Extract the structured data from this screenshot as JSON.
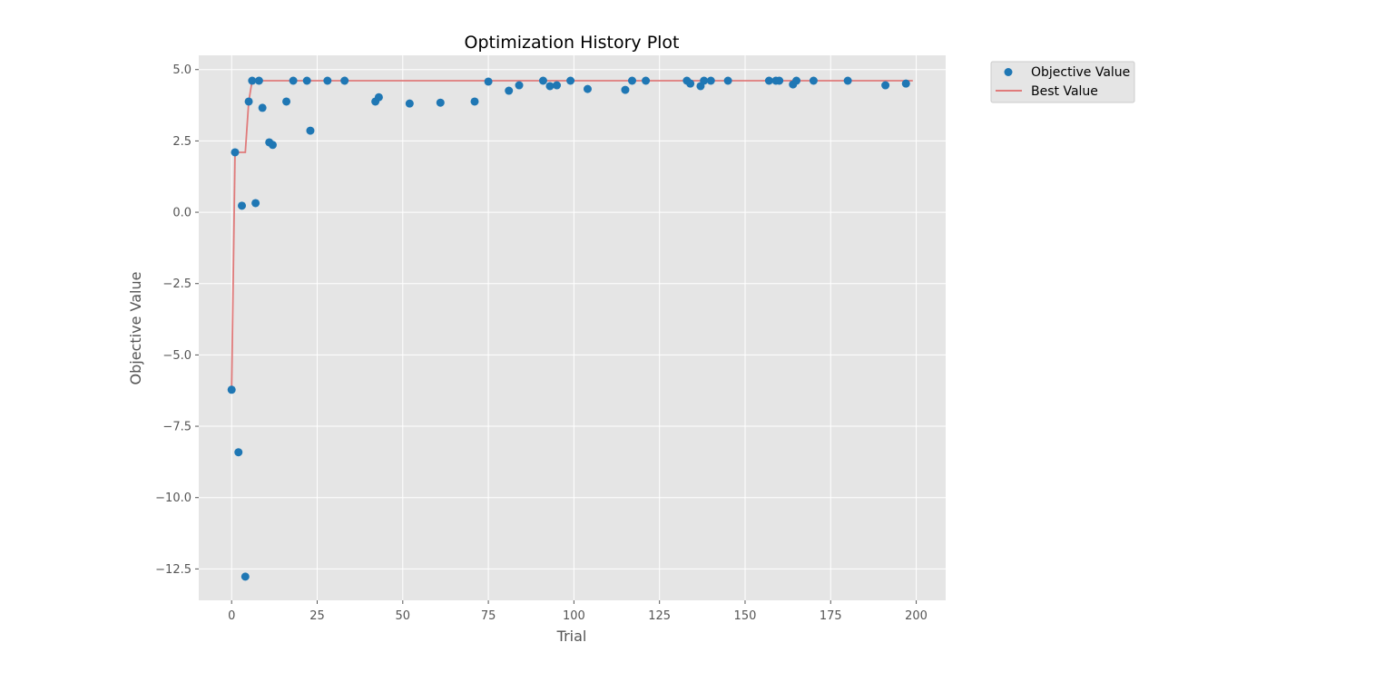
{
  "chart_data": {
    "type": "scatter",
    "title": "Optimization History Plot",
    "xlabel": "Trial",
    "ylabel": "Objective Value",
    "xlim": [
      -9.6,
      208.6
    ],
    "ylim": [
      -13.6,
      5.5
    ],
    "xticks": [
      0,
      25,
      50,
      75,
      100,
      125,
      150,
      175,
      200
    ],
    "yticks": [
      5.0,
      2.5,
      0.0,
      -2.5,
      -5.0,
      -7.5,
      -10.0,
      -12.5
    ],
    "ytick_labels": [
      "5.0",
      "2.5",
      "0.0",
      "−2.5",
      "−5.0",
      "−7.5",
      "−10.0",
      "−12.5"
    ],
    "grid": true,
    "legend_position": "outside-top-right",
    "series": [
      {
        "name": "Objective Value",
        "kind": "scatter",
        "color": "#1f77b4",
        "points": [
          [
            0,
            -6.22
          ],
          [
            1,
            2.1
          ],
          [
            2,
            -8.41
          ],
          [
            3,
            0.23
          ],
          [
            4,
            -12.77
          ],
          [
            5,
            3.88
          ],
          [
            6,
            4.61
          ],
          [
            7,
            0.32
          ],
          [
            8,
            4.61
          ],
          [
            9,
            3.66
          ],
          [
            11,
            2.45
          ],
          [
            12,
            2.36
          ],
          [
            16,
            3.88
          ],
          [
            18,
            4.61
          ],
          [
            22,
            4.61
          ],
          [
            23,
            2.86
          ],
          [
            28,
            4.61
          ],
          [
            33,
            4.61
          ],
          [
            42,
            3.88
          ],
          [
            43,
            4.03
          ],
          [
            52,
            3.81
          ],
          [
            61,
            3.84
          ],
          [
            71,
            3.88
          ],
          [
            75,
            4.58
          ],
          [
            81,
            4.26
          ],
          [
            84,
            4.45
          ],
          [
            91,
            4.61
          ],
          [
            93,
            4.42
          ],
          [
            95,
            4.45
          ],
          [
            99,
            4.61
          ],
          [
            104,
            4.32
          ],
          [
            115,
            4.29
          ],
          [
            117,
            4.61
          ],
          [
            121,
            4.61
          ],
          [
            133,
            4.61
          ],
          [
            134,
            4.51
          ],
          [
            137,
            4.42
          ],
          [
            138,
            4.61
          ],
          [
            140,
            4.61
          ],
          [
            145,
            4.61
          ],
          [
            157,
            4.61
          ],
          [
            159,
            4.61
          ],
          [
            160,
            4.61
          ],
          [
            164,
            4.48
          ],
          [
            165,
            4.61
          ],
          [
            170,
            4.61
          ],
          [
            180,
            4.61
          ],
          [
            191,
            4.45
          ],
          [
            197,
            4.51
          ]
        ]
      },
      {
        "name": "Best Value",
        "kind": "line",
        "color": "#e07b7b",
        "points": [
          [
            0,
            -6.22
          ],
          [
            1,
            2.1
          ],
          [
            2,
            2.1
          ],
          [
            3,
            2.1
          ],
          [
            4,
            2.1
          ],
          [
            5,
            3.88
          ],
          [
            6,
            4.61
          ],
          [
            199,
            4.61
          ]
        ]
      }
    ]
  }
}
